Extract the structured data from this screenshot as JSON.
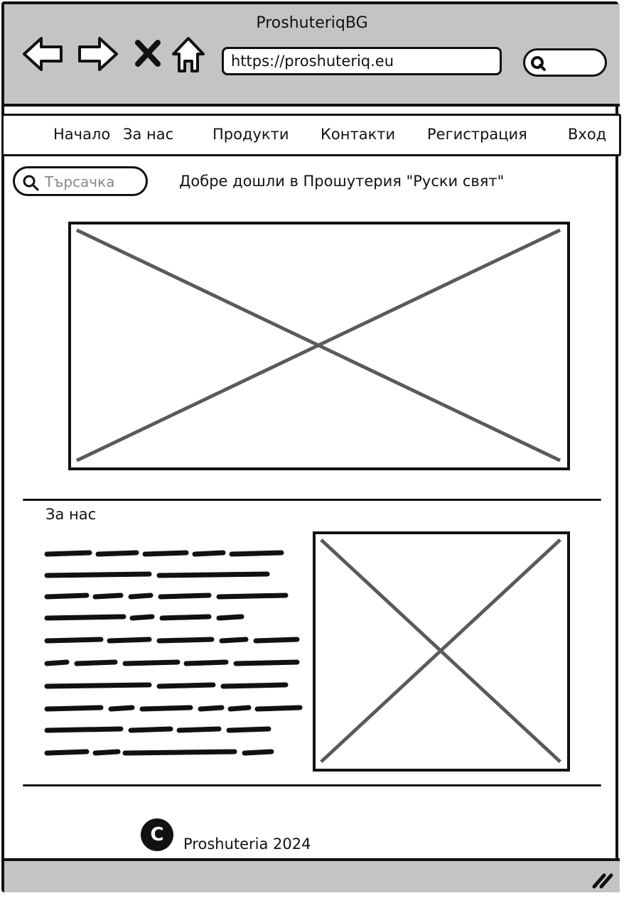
{
  "window": {
    "title": "ProshuteriqBG"
  },
  "browser": {
    "url": "https://proshuteriq.eu",
    "icons": [
      "back-arrow-icon",
      "forward-arrow-icon",
      "close-icon",
      "home-icon",
      "search-icon"
    ]
  },
  "nav": {
    "items": [
      {
        "label": "Начало"
      },
      {
        "label": "За нас"
      },
      {
        "label": "Продукти"
      },
      {
        "label": "Контакти"
      },
      {
        "label": "Регистрация"
      },
      {
        "label": "Вход"
      }
    ]
  },
  "search": {
    "placeholder": "Търсачка"
  },
  "welcome": "Добре дошли в Прошутерия \"Руски свят\"",
  "about": {
    "title": "За нас"
  },
  "footer": {
    "copyright_symbol": "C",
    "text": "Proshuteria 2024"
  },
  "colors": {
    "chrome": "#c4c4c4",
    "stroke": "#111111",
    "placeholder_cross": "#5a5a5a"
  }
}
